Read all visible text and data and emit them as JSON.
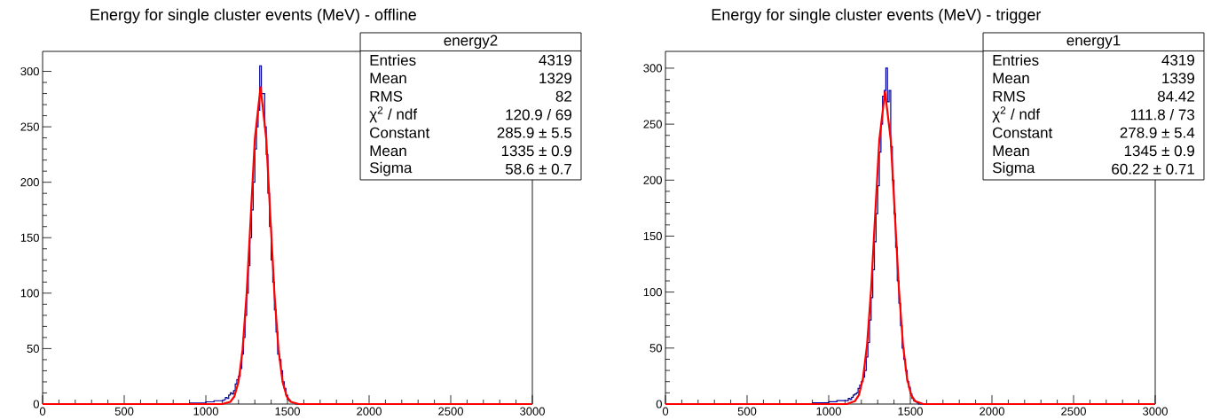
{
  "chart_data": [
    {
      "type": "histogram",
      "title": "Energy for single cluster events (MeV) - offline",
      "color": "#000099",
      "bins": [
        0,
        900,
        1000,
        1050,
        1100,
        1110,
        1120,
        1130,
        1140,
        1150,
        1160,
        1170,
        1180,
        1190,
        1200,
        1210,
        1220,
        1230,
        1240,
        1250,
        1260,
        1270,
        1280,
        1290,
        1300,
        1310,
        1320,
        1330,
        1340,
        1350,
        1360,
        1370,
        1380,
        1390,
        1400,
        1410,
        1420,
        1430,
        1440,
        1450,
        1460,
        1470,
        1480,
        1490,
        1500,
        1510,
        1520,
        1530,
        1540,
        1550,
        1560,
        1570,
        1580,
        1590,
        1600,
        3000
      ],
      "values": [
        0,
        1,
        2,
        3,
        3,
        4,
        6,
        5,
        8,
        10,
        9,
        12,
        18,
        22,
        25,
        32,
        45,
        60,
        80,
        100,
        125,
        150,
        175,
        200,
        230,
        250,
        265,
        305,
        280,
        280,
        250,
        225,
        190,
        160,
        130,
        110,
        85,
        65,
        45,
        40,
        30,
        20,
        14,
        8,
        4,
        3,
        2,
        1,
        1,
        0,
        0,
        0,
        0,
        0,
        0
      ],
      "series": [
        {
          "type": "line",
          "color": "#ff0000",
          "x": [
            0,
            1100,
            1150,
            1175,
            1200,
            1225,
            1250,
            1275,
            1300,
            1335,
            1370,
            1395,
            1420,
            1445,
            1470,
            1495,
            1520,
            1570,
            3000
          ],
          "values": [
            0,
            0,
            2,
            7,
            20,
            49,
            100,
            169,
            239,
            286,
            239,
            169,
            100,
            49,
            20,
            7,
            2,
            0,
            0
          ]
        }
      ],
      "xlim": [
        0,
        3000
      ],
      "ylim": [
        0,
        318
      ],
      "xticks": [
        0,
        500,
        1000,
        1500,
        2000,
        2500,
        3000
      ],
      "yticks": [
        0,
        50,
        100,
        150,
        200,
        250,
        300
      ],
      "annotations": [
        "energy2",
        "Entries",
        "4319",
        "Mean",
        "1329",
        "RMS",
        "82",
        "χ$^{2}$ / ndf",
        "120.9 / 69",
        "Constant",
        "285.9 ± 5.5",
        "Mean",
        "1335 ± 0.9",
        "Sigma",
        "58.6 ± 0.7"
      ]
    },
    {
      "type": "histogram",
      "title": "Energy for single cluster events (MeV) - trigger",
      "color": "#000099",
      "bins": [
        0,
        900,
        1000,
        1050,
        1100,
        1110,
        1120,
        1130,
        1140,
        1150,
        1160,
        1170,
        1180,
        1190,
        1200,
        1210,
        1220,
        1230,
        1240,
        1250,
        1260,
        1270,
        1280,
        1290,
        1300,
        1310,
        1320,
        1330,
        1340,
        1350,
        1360,
        1370,
        1380,
        1390,
        1400,
        1410,
        1420,
        1430,
        1440,
        1450,
        1460,
        1470,
        1480,
        1490,
        1500,
        1510,
        1520,
        1530,
        1540,
        1550,
        1560,
        1570,
        1580,
        1590,
        1600,
        3000
      ],
      "values": [
        0,
        1,
        2,
        3,
        3,
        3,
        5,
        4,
        6,
        8,
        9,
        10,
        14,
        17,
        20,
        24,
        30,
        42,
        55,
        75,
        95,
        120,
        145,
        170,
        195,
        225,
        250,
        275,
        280,
        300,
        270,
        280,
        230,
        200,
        170,
        140,
        110,
        90,
        70,
        50,
        40,
        30,
        20,
        15,
        9,
        5,
        3,
        2,
        1,
        0,
        0,
        0,
        0,
        0,
        0
      ],
      "series": [
        {
          "type": "line",
          "color": "#ff0000",
          "x": [
            0,
            1110,
            1160,
            1185,
            1210,
            1235,
            1260,
            1285,
            1310,
            1345,
            1380,
            1405,
            1430,
            1455,
            1480,
            1505,
            1530,
            1580,
            3000
          ],
          "values": [
            0,
            0,
            2.5,
            8,
            23,
            53,
            103,
            170,
            236,
            279,
            236,
            170,
            103,
            53,
            23,
            8,
            2.5,
            0,
            0
          ]
        }
      ],
      "xlim": [
        0,
        3000
      ],
      "ylim": [
        0,
        315
      ],
      "xticks": [
        0,
        500,
        1000,
        1500,
        2000,
        2500,
        3000
      ],
      "yticks": [
        0,
        50,
        100,
        150,
        200,
        250,
        300
      ],
      "annotations": [
        "energy1",
        "Entries",
        "4319",
        "Mean",
        "1339",
        "RMS",
        "84.42",
        "χ$^{2}$ / ndf",
        "111.8 / 73",
        "Constant",
        "278.9 ± 5.4",
        "Mean",
        "1345 ± 0.9",
        "Sigma",
        "60.22 ± 0.71"
      ]
    }
  ]
}
